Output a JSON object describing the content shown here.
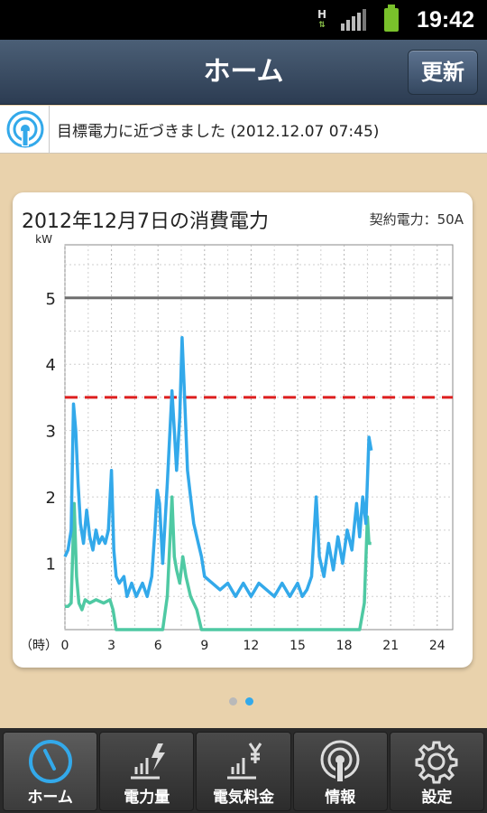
{
  "status_bar": {
    "network": "H",
    "time": "19:42"
  },
  "header": {
    "title": "ホーム",
    "refresh_label": "更新"
  },
  "notice": {
    "message": "目標電力に近づきました (2012.12.07 07:45)"
  },
  "card": {
    "title": "2012年12月7日の消費電力",
    "contract": "契約電力：50A"
  },
  "chart_data": {
    "type": "line",
    "ylabel": "kW",
    "xlabel": "（時）",
    "xlim": [
      0,
      25
    ],
    "ylim": [
      0,
      5.8
    ],
    "x_ticks": [
      0,
      3,
      6,
      9,
      12,
      15,
      18,
      21,
      24
    ],
    "y_ticks": [
      1,
      2,
      3,
      4,
      5
    ],
    "reference_lines": [
      {
        "value": 5,
        "style": "solid",
        "color": "#6e6e6e"
      },
      {
        "value": 3.5,
        "style": "dashed",
        "color": "#dd1f1f"
      }
    ],
    "series": [
      {
        "color": "#33a9ea",
        "points": [
          [
            0,
            1.1
          ],
          [
            0.2,
            1.2
          ],
          [
            0.4,
            1.5
          ],
          [
            0.55,
            3.4
          ],
          [
            0.7,
            3.0
          ],
          [
            0.85,
            2.2
          ],
          [
            1.0,
            1.6
          ],
          [
            1.2,
            1.3
          ],
          [
            1.4,
            1.8
          ],
          [
            1.6,
            1.4
          ],
          [
            1.8,
            1.2
          ],
          [
            2.0,
            1.5
          ],
          [
            2.2,
            1.3
          ],
          [
            2.4,
            1.4
          ],
          [
            2.6,
            1.3
          ],
          [
            2.8,
            1.5
          ],
          [
            3.0,
            2.4
          ],
          [
            3.15,
            1.2
          ],
          [
            3.3,
            0.8
          ],
          [
            3.5,
            0.7
          ],
          [
            3.8,
            0.8
          ],
          [
            4.0,
            0.5
          ],
          [
            4.3,
            0.7
          ],
          [
            4.6,
            0.5
          ],
          [
            5.0,
            0.7
          ],
          [
            5.3,
            0.5
          ],
          [
            5.6,
            0.8
          ],
          [
            5.8,
            1.5
          ],
          [
            5.95,
            2.1
          ],
          [
            6.1,
            1.9
          ],
          [
            6.3,
            1.0
          ],
          [
            6.6,
            2.2
          ],
          [
            6.9,
            3.6
          ],
          [
            7.05,
            3.0
          ],
          [
            7.2,
            2.4
          ],
          [
            7.4,
            3.2
          ],
          [
            7.55,
            4.4
          ],
          [
            7.7,
            3.6
          ],
          [
            7.9,
            2.4
          ],
          [
            8.1,
            2.0
          ],
          [
            8.3,
            1.6
          ],
          [
            8.6,
            1.3
          ],
          [
            8.8,
            1.1
          ],
          [
            9.0,
            0.8
          ],
          [
            9.5,
            0.7
          ],
          [
            10,
            0.6
          ],
          [
            10.5,
            0.7
          ],
          [
            11,
            0.5
          ],
          [
            11.5,
            0.7
          ],
          [
            12,
            0.5
          ],
          [
            12.5,
            0.7
          ],
          [
            13,
            0.6
          ],
          [
            13.5,
            0.5
          ],
          [
            14,
            0.7
          ],
          [
            14.5,
            0.5
          ],
          [
            15,
            0.7
          ],
          [
            15.3,
            0.5
          ],
          [
            15.6,
            0.6
          ],
          [
            15.9,
            0.8
          ],
          [
            16.2,
            2.0
          ],
          [
            16.4,
            1.1
          ],
          [
            16.7,
            0.8
          ],
          [
            17.0,
            1.3
          ],
          [
            17.3,
            0.9
          ],
          [
            17.6,
            1.4
          ],
          [
            17.9,
            1.0
          ],
          [
            18.2,
            1.5
          ],
          [
            18.5,
            1.2
          ],
          [
            18.8,
            1.9
          ],
          [
            19.0,
            1.4
          ],
          [
            19.2,
            2.0
          ],
          [
            19.4,
            1.6
          ],
          [
            19.6,
            2.9
          ],
          [
            19.75,
            2.7
          ]
        ]
      },
      {
        "color": "#4fc9a3",
        "points": [
          [
            0,
            0.35
          ],
          [
            0.2,
            0.35
          ],
          [
            0.4,
            0.4
          ],
          [
            0.6,
            1.9
          ],
          [
            0.75,
            0.8
          ],
          [
            0.9,
            0.4
          ],
          [
            1.1,
            0.3
          ],
          [
            1.3,
            0.45
          ],
          [
            1.6,
            0.4
          ],
          [
            2.0,
            0.45
          ],
          [
            2.5,
            0.4
          ],
          [
            2.9,
            0.45
          ],
          [
            3.1,
            0.3
          ],
          [
            3.3,
            0.0
          ],
          [
            5.8,
            0.0
          ],
          [
            6.0,
            0.0
          ],
          [
            6.3,
            0.0
          ],
          [
            6.6,
            0.5
          ],
          [
            6.9,
            2.0
          ],
          [
            7.05,
            1.1
          ],
          [
            7.2,
            0.9
          ],
          [
            7.4,
            0.7
          ],
          [
            7.6,
            1.1
          ],
          [
            7.8,
            0.8
          ],
          [
            8.1,
            0.5
          ],
          [
            8.5,
            0.3
          ],
          [
            8.8,
            0.0
          ],
          [
            19.0,
            0.0
          ],
          [
            19.3,
            0.4
          ],
          [
            19.5,
            1.7
          ],
          [
            19.6,
            1.3
          ],
          [
            19.75,
            1.3
          ]
        ]
      }
    ]
  },
  "pager": {
    "count": 2,
    "active": 1,
    "inactive_color": "#b9b9b9",
    "active_color": "#33a9ea"
  },
  "tabs": [
    {
      "label": "ホーム",
      "icon": "home-gauge-icon",
      "active": true
    },
    {
      "label": "電力量",
      "icon": "power-amount-icon",
      "active": false
    },
    {
      "label": "電気料金",
      "icon": "electricity-fee-icon",
      "active": false
    },
    {
      "label": "情報",
      "icon": "info-broadcast-icon",
      "active": false
    },
    {
      "label": "設定",
      "icon": "settings-gear-icon",
      "active": false
    }
  ]
}
